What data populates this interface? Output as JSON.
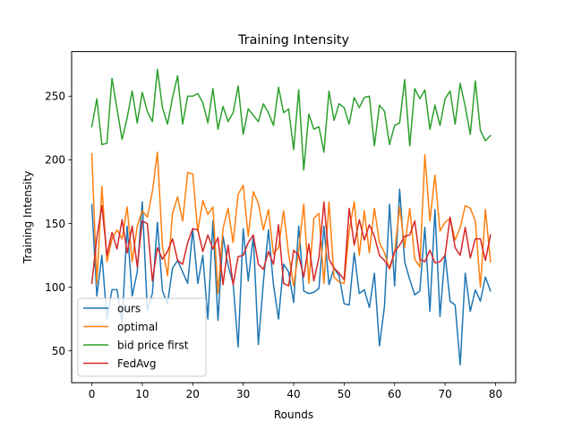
{
  "chart_data": {
    "type": "line",
    "title": "Training Intensity",
    "xlabel": "Rounds",
    "ylabel": "Training Intensity",
    "xlim": [
      -4,
      84
    ],
    "ylim": [
      25,
      285
    ],
    "xticks": [
      0,
      10,
      20,
      30,
      40,
      50,
      60,
      70,
      80
    ],
    "yticks": [
      50,
      100,
      150,
      200,
      250
    ],
    "grid": false,
    "legend_position": "lower-left",
    "x": [
      0,
      1,
      2,
      3,
      4,
      5,
      6,
      7,
      8,
      9,
      10,
      11,
      12,
      13,
      14,
      15,
      16,
      17,
      18,
      19,
      20,
      21,
      22,
      23,
      24,
      25,
      26,
      27,
      28,
      29,
      30,
      31,
      32,
      33,
      34,
      35,
      36,
      37,
      38,
      39,
      40,
      41,
      42,
      43,
      44,
      45,
      46,
      47,
      48,
      49,
      50,
      51,
      52,
      53,
      54,
      55,
      56,
      57,
      58,
      59,
      60,
      61,
      62,
      63,
      64,
      65,
      66,
      67,
      68,
      69,
      70,
      71,
      72,
      73,
      74,
      75,
      76,
      77,
      78,
      79
    ],
    "series": [
      {
        "name": "ours",
        "color": "#1f77b4",
        "values": [
          165,
          93,
          125,
          75,
          98,
          98,
          72,
          148,
          93,
          112,
          167,
          82,
          95,
          151,
          97,
          87,
          115,
          121,
          112,
          103,
          145,
          103,
          125,
          75,
          152,
          74,
          140,
          117,
          103,
          53,
          146,
          105,
          140,
          55,
          104,
          145,
          102,
          75,
          118,
          112,
          88,
          148,
          97,
          95,
          96,
          99,
          148,
          102,
          115,
          109,
          87,
          86,
          127,
          95,
          98,
          84,
          111,
          54,
          85,
          165,
          101,
          177,
          120,
          106,
          94,
          97,
          147,
          81,
          161,
          77,
          126,
          89,
          86,
          39,
          111,
          81,
          98,
          89,
          108,
          97
        ]
      },
      {
        "name": "optimal",
        "color": "#ff7f0e",
        "values": [
          205,
          103,
          179,
          120,
          138,
          145,
          138,
          163,
          120,
          148,
          160,
          155,
          175,
          206,
          132,
          109,
          158,
          171,
          152,
          190,
          189,
          144,
          168,
          157,
          163,
          95,
          146,
          162,
          135,
          173,
          180,
          140,
          175,
          166,
          145,
          161,
          126,
          131,
          160,
          126,
          101,
          129,
          165,
          103,
          154,
          158,
          103,
          167,
          108,
          104,
          103,
          144,
          167,
          125,
          160,
          127,
          162,
          135,
          127,
          114,
          127,
          163,
          131,
          162,
          122,
          116,
          204,
          152,
          188,
          144,
          151,
          154,
          137,
          147,
          164,
          162,
          152,
          100,
          161,
          120
        ]
      },
      {
        "name": "bid price first",
        "color": "#2ca02c",
        "values": [
          226,
          248,
          212,
          213,
          264,
          240,
          216,
          233,
          254,
          229,
          253,
          238,
          230,
          271,
          241,
          228,
          249,
          266,
          228,
          250,
          250,
          252,
          245,
          229,
          256,
          224,
          242,
          230,
          237,
          258,
          220,
          240,
          235,
          230,
          244,
          237,
          227,
          257,
          237,
          240,
          208,
          255,
          192,
          236,
          224,
          226,
          206,
          254,
          231,
          244,
          241,
          228,
          249,
          241,
          249,
          250,
          211,
          243,
          238,
          212,
          227,
          229,
          263,
          211,
          256,
          248,
          255,
          224,
          243,
          227,
          248,
          254,
          228,
          260,
          242,
          220,
          262,
          223,
          215,
          219
        ]
      },
      {
        "name": "FedAvg",
        "color": "#d62728",
        "values": [
          103,
          139,
          164,
          125,
          143,
          130,
          153,
          127,
          148,
          116,
          152,
          150,
          105,
          131,
          122,
          128,
          138,
          121,
          118,
          135,
          146,
          145,
          128,
          141,
          130,
          139,
          102,
          133,
          102,
          124,
          125,
          135,
          141,
          118,
          114,
          128,
          118,
          149,
          103,
          101,
          129,
          125,
          108,
          134,
          105,
          123,
          167,
          122,
          115,
          111,
          106,
          162,
          133,
          153,
          137,
          149,
          140,
          125,
          121,
          115,
          128,
          133,
          140,
          141,
          152,
          122,
          120,
          129,
          119,
          120,
          125,
          155,
          131,
          125,
          147,
          123,
          138,
          138,
          121,
          141
        ]
      }
    ]
  }
}
